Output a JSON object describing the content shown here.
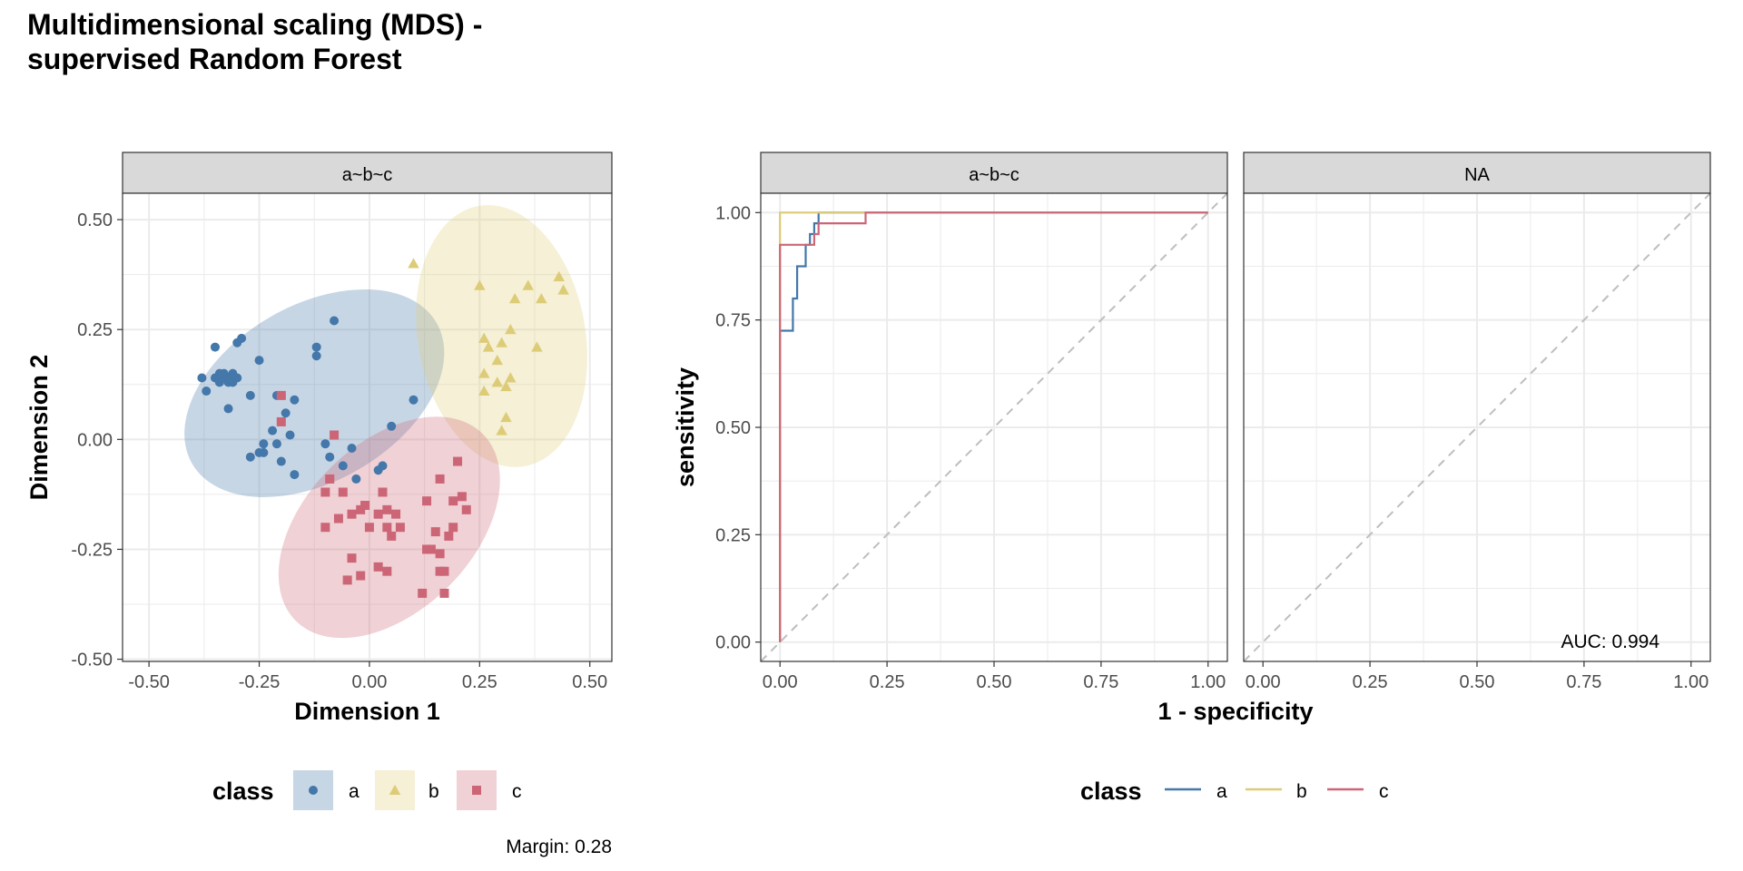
{
  "title": "Multidimensional scaling (MDS) -\nsupervised Random Forest",
  "colors": {
    "a": "#4477AA",
    "b": "#DDCC77",
    "c": "#CC6677"
  },
  "chart_data": [
    {
      "type": "scatter",
      "panel_label": "a~b~c",
      "xlabel": "Dimension 1",
      "ylabel": "Dimension 2",
      "xlim": [
        -0.56,
        0.55
      ],
      "ylim": [
        -0.505,
        0.56
      ],
      "x_ticks": [
        "-0.50",
        "-0.25",
        "0.00",
        "0.25",
        "0.50"
      ],
      "y_ticks": [
        "-0.50",
        "-0.25",
        "0.00",
        "0.25",
        "0.50"
      ],
      "grid": true,
      "legend_title": "class",
      "legend_position": "bottom",
      "series": [
        {
          "name": "a",
          "shape": "circle",
          "ellipse": {
            "cx": -0.125,
            "cy": 0.105,
            "rx": 0.32,
            "ry": 0.2,
            "angle_deg": -30
          },
          "points": [
            [
              -0.34,
              0.13
            ],
            [
              -0.33,
              0.14
            ],
            [
              -0.32,
              0.13
            ],
            [
              -0.32,
              0.14
            ],
            [
              -0.31,
              0.15
            ],
            [
              -0.31,
              0.13
            ],
            [
              -0.3,
              0.14
            ],
            [
              -0.33,
              0.15
            ],
            [
              -0.34,
              0.15
            ],
            [
              -0.35,
              0.14
            ],
            [
              -0.37,
              0.11
            ],
            [
              -0.38,
              0.14
            ],
            [
              -0.35,
              0.21
            ],
            [
              -0.3,
              0.22
            ],
            [
              -0.29,
              0.23
            ],
            [
              -0.25,
              0.18
            ],
            [
              -0.32,
              0.07
            ],
            [
              -0.27,
              0.1
            ],
            [
              -0.21,
              0.1
            ],
            [
              -0.2,
              0.1
            ],
            [
              -0.17,
              0.09
            ],
            [
              -0.19,
              0.06
            ],
            [
              -0.24,
              -0.01
            ],
            [
              -0.22,
              0.02
            ],
            [
              -0.21,
              -0.01
            ],
            [
              -0.2,
              -0.05
            ],
            [
              -0.18,
              0.01
            ],
            [
              -0.25,
              -0.03
            ],
            [
              -0.27,
              -0.04
            ],
            [
              -0.24,
              -0.03
            ],
            [
              -0.12,
              0.21
            ],
            [
              -0.12,
              0.19
            ],
            [
              -0.08,
              0.27
            ],
            [
              -0.1,
              -0.01
            ],
            [
              -0.09,
              -0.04
            ],
            [
              -0.06,
              -0.06
            ],
            [
              -0.04,
              -0.02
            ],
            [
              -0.09,
              -0.09
            ],
            [
              -0.03,
              -0.09
            ],
            [
              0.03,
              -0.06
            ],
            [
              0.02,
              -0.07
            ],
            [
              0.05,
              0.03
            ],
            [
              0.1,
              0.09
            ],
            [
              -0.17,
              -0.08
            ]
          ]
        },
        {
          "name": "b",
          "shape": "triangle",
          "points": [
            [
              0.1,
              0.4
            ],
            [
              0.25,
              0.35
            ],
            [
              0.33,
              0.32
            ],
            [
              0.36,
              0.35
            ],
            [
              0.39,
              0.32
            ],
            [
              0.43,
              0.37
            ],
            [
              0.44,
              0.34
            ],
            [
              0.26,
              0.23
            ],
            [
              0.27,
              0.21
            ],
            [
              0.3,
              0.22
            ],
            [
              0.32,
              0.25
            ],
            [
              0.29,
              0.18
            ],
            [
              0.26,
              0.15
            ],
            [
              0.29,
              0.13
            ],
            [
              0.31,
              0.12
            ],
            [
              0.32,
              0.14
            ],
            [
              0.26,
              0.11
            ],
            [
              0.38,
              0.21
            ],
            [
              0.31,
              0.05
            ],
            [
              0.3,
              0.02
            ]
          ],
          "ellipse": {
            "cx": 0.3,
            "cy": 0.235,
            "rx": 0.19,
            "ry": 0.3,
            "angle_deg": -10
          }
        },
        {
          "name": "c",
          "shape": "square",
          "ellipse": {
            "cx": 0.045,
            "cy": -0.2,
            "rx": 0.3,
            "ry": 0.19,
            "angle_deg": -45
          },
          "points": [
            [
              -0.2,
              0.1
            ],
            [
              -0.2,
              0.04
            ],
            [
              -0.08,
              0.01
            ],
            [
              -0.1,
              -0.12
            ],
            [
              -0.09,
              -0.09
            ],
            [
              -0.06,
              -0.12
            ],
            [
              -0.07,
              -0.18
            ],
            [
              -0.04,
              -0.17
            ],
            [
              -0.01,
              -0.15
            ],
            [
              -0.02,
              -0.16
            ],
            [
              0.0,
              -0.2
            ],
            [
              0.02,
              -0.17
            ],
            [
              0.04,
              -0.16
            ],
            [
              0.04,
              -0.2
            ],
            [
              0.05,
              -0.22
            ],
            [
              0.07,
              -0.2
            ],
            [
              -0.1,
              -0.2
            ],
            [
              -0.04,
              -0.27
            ],
            [
              -0.02,
              -0.31
            ],
            [
              -0.05,
              -0.32
            ],
            [
              0.02,
              -0.29
            ],
            [
              0.04,
              -0.3
            ],
            [
              0.06,
              -0.17
            ],
            [
              0.13,
              -0.14
            ],
            [
              0.14,
              -0.25
            ],
            [
              0.13,
              -0.25
            ],
            [
              0.15,
              -0.21
            ],
            [
              0.16,
              -0.26
            ],
            [
              0.16,
              -0.3
            ],
            [
              0.17,
              -0.3
            ],
            [
              0.17,
              -0.35
            ],
            [
              0.12,
              -0.35
            ],
            [
              0.18,
              -0.22
            ],
            [
              0.19,
              -0.14
            ],
            [
              0.19,
              -0.2
            ],
            [
              0.21,
              -0.13
            ],
            [
              0.22,
              -0.16
            ],
            [
              0.16,
              -0.09
            ],
            [
              0.2,
              -0.05
            ],
            [
              0.03,
              -0.12
            ]
          ]
        }
      ],
      "annotation": "Margin: 0.28"
    },
    {
      "type": "line",
      "panels": [
        "a~b~c",
        "NA"
      ],
      "xlabel": "1 - specificity",
      "ylabel": "sensitivity",
      "xlim": [
        -0.045,
        1.045
      ],
      "ylim": [
        -0.045,
        1.045
      ],
      "x_ticks": [
        "0.00",
        "0.25",
        "0.50",
        "0.75",
        "1.00"
      ],
      "y_ticks": [
        "0.00",
        "0.25",
        "0.50",
        "0.75",
        "1.00"
      ],
      "grid": true,
      "legend_title": "class",
      "legend_position": "bottom",
      "series": [
        {
          "name": "a",
          "panel": 0,
          "x": [
            0,
            0,
            0.03,
            0.03,
            0.04,
            0.04,
            0.06,
            0.06,
            0.07,
            0.07,
            0.08,
            0.08,
            0.09,
            0.09,
            1.0
          ],
          "y": [
            0,
            0.725,
            0.725,
            0.8,
            0.8,
            0.875,
            0.875,
            0.925,
            0.925,
            0.95,
            0.95,
            0.975,
            0.975,
            1.0,
            1.0
          ]
        },
        {
          "name": "b",
          "panel": 0,
          "x": [
            0,
            0,
            1.0
          ],
          "y": [
            0,
            1.0,
            1.0
          ]
        },
        {
          "name": "c",
          "panel": 0,
          "x": [
            0,
            0,
            0.08,
            0.08,
            0.09,
            0.09,
            0.2,
            0.2,
            1.0
          ],
          "y": [
            0,
            0.925,
            0.925,
            0.95,
            0.95,
            0.975,
            0.975,
            1.0,
            1.0
          ]
        }
      ],
      "annotation": "AUC: 0.994"
    }
  ]
}
